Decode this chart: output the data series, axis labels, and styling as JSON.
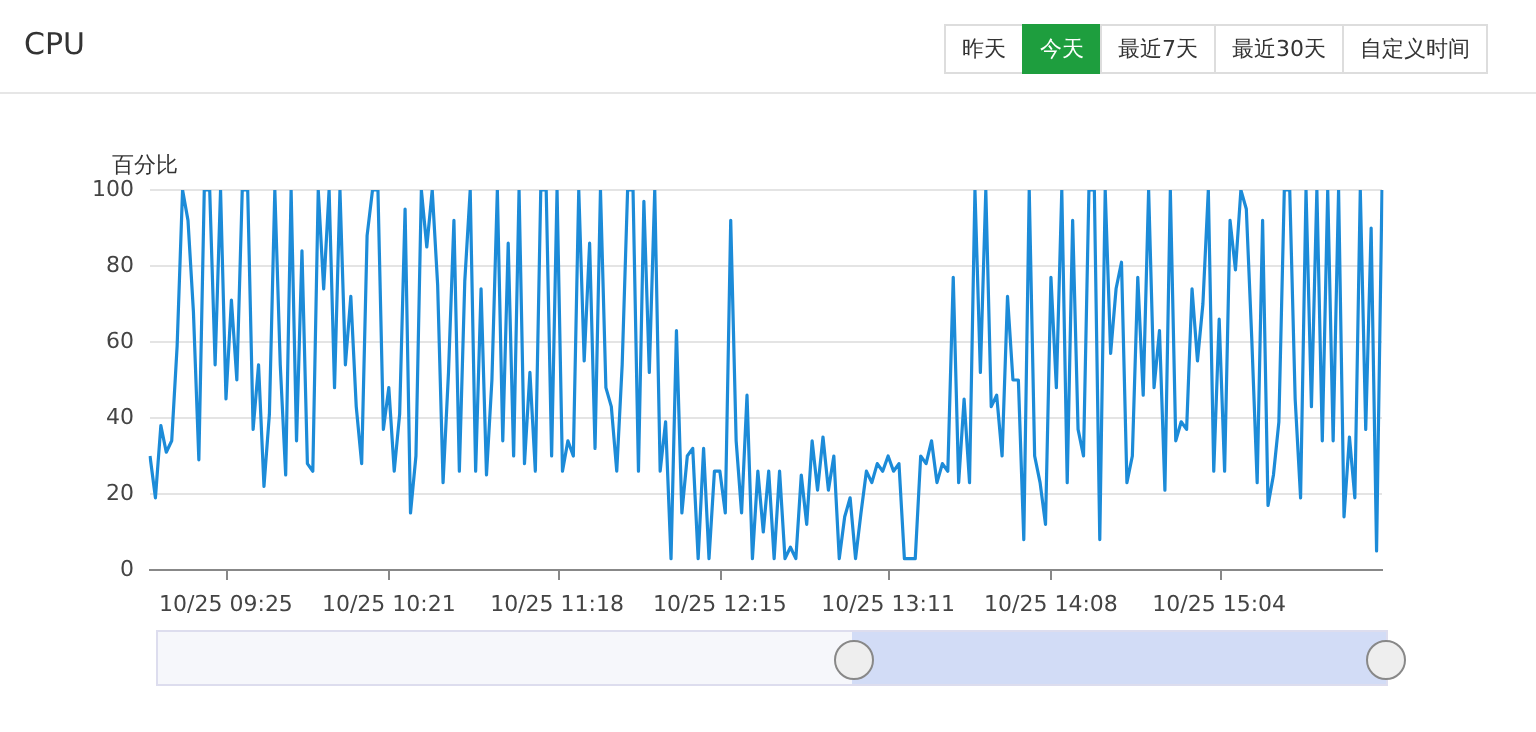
{
  "chart_data": {
    "type": "line",
    "title": "CPU",
    "ylabel": "百分比",
    "annotations": [
      "昨天",
      "今天",
      "最近7天",
      "最近30天",
      "自定义时间"
    ],
    "categories": [
      null,
      null,
      null,
      null,
      null,
      null,
      null,
      null,
      null,
      null,
      null,
      null,
      null,
      null,
      "10/25 09:25",
      null,
      null,
      null,
      null,
      null,
      null,
      null,
      null,
      null,
      null,
      null,
      null,
      null,
      null,
      null,
      null,
      null,
      null,
      null,
      null,
      null,
      null,
      null,
      null,
      null,
      null,
      null,
      null,
      null,
      "10/25 10:21",
      null,
      null,
      null,
      null,
      null,
      null,
      null,
      null,
      null,
      null,
      null,
      null,
      null,
      null,
      null,
      null,
      null,
      null,
      null,
      null,
      null,
      null,
      null,
      null,
      null,
      null,
      null,
      null,
      null,
      null,
      "10/25 11:18",
      null,
      null,
      null,
      null,
      null,
      null,
      null,
      null,
      null,
      null,
      null,
      null,
      null,
      null,
      null,
      null,
      null,
      null,
      null,
      null,
      null,
      null,
      null,
      null,
      null,
      null,
      null,
      null,
      null,
      "10/25 12:15",
      null,
      null,
      null,
      null,
      null,
      null,
      null,
      null,
      null,
      null,
      null,
      null,
      null,
      null,
      null,
      null,
      null,
      null,
      null,
      null,
      null,
      null,
      null,
      null,
      null,
      null,
      null,
      null,
      null,
      null,
      "10/25 13:11",
      null,
      null,
      null,
      null,
      null,
      null,
      null,
      null,
      null,
      null,
      null,
      null,
      null,
      null,
      null,
      null,
      null,
      null,
      null,
      null,
      null,
      null,
      null,
      null,
      null,
      null,
      null,
      null,
      null,
      "10/25 14:08",
      null,
      null,
      null,
      null,
      null,
      null,
      null,
      null,
      null,
      null,
      null,
      null,
      null,
      null,
      null,
      null,
      null,
      null,
      null,
      null,
      null,
      null,
      null,
      null,
      null,
      null,
      null,
      null,
      null,
      null,
      "10/25 15:04",
      null,
      null,
      null,
      null,
      null,
      null,
      null,
      null,
      null,
      null,
      null,
      null,
      null,
      null,
      null,
      null,
      null,
      null,
      null,
      null,
      null,
      null,
      null,
      null,
      null,
      null,
      null,
      null,
      null,
      null
    ],
    "ylim": [
      0,
      100
    ],
    "yticks": [
      0,
      20,
      40,
      60,
      80,
      100
    ],
    "grid": "y",
    "marker": "none",
    "line_style": "solid",
    "legend": false,
    "series": [
      {
        "color": "#1c8bd8",
        "values": [
          30,
          19,
          38,
          31,
          34,
          59,
          100,
          92,
          68,
          29,
          100,
          100,
          54,
          100,
          45,
          71,
          50,
          100,
          100,
          37,
          54,
          22,
          41,
          100,
          54,
          25,
          100,
          34,
          84,
          28,
          26,
          100,
          74,
          100,
          48,
          100,
          54,
          72,
          43,
          28,
          88,
          100,
          100,
          37,
          48,
          26,
          41,
          95,
          15,
          30,
          100,
          85,
          100,
          75,
          23,
          52,
          92,
          26,
          76,
          100,
          26,
          74,
          25,
          50,
          100,
          34,
          86,
          30,
          100,
          28,
          52,
          26,
          100,
          100,
          30,
          100,
          26,
          34,
          30,
          100,
          55,
          86,
          32,
          100,
          48,
          43,
          26,
          54,
          100,
          100,
          26,
          97,
          52,
          100,
          26,
          39,
          3,
          63,
          15,
          30,
          32,
          3,
          32,
          3,
          26,
          26,
          15,
          92,
          34,
          15,
          46,
          3,
          26,
          10,
          26,
          3,
          26,
          3,
          6,
          3,
          25,
          12,
          34,
          21,
          35,
          21,
          30,
          3,
          14,
          19,
          3,
          15,
          26,
          23,
          28,
          26,
          30,
          26,
          28,
          3,
          3,
          3,
          30,
          28,
          34,
          23,
          28,
          26,
          77,
          23,
          45,
          23,
          100,
          52,
          100,
          43,
          46,
          30,
          72,
          50,
          50,
          8,
          100,
          30,
          23,
          12,
          77,
          48,
          100,
          23,
          92,
          37,
          30,
          100,
          100,
          8,
          100,
          57,
          74,
          81,
          23,
          30,
          77,
          46,
          100,
          48,
          63,
          21,
          100,
          34,
          39,
          37,
          74,
          55,
          70,
          100,
          26,
          66,
          26,
          92,
          79,
          100,
          95,
          61,
          23,
          92,
          17,
          25,
          39,
          100,
          100,
          45,
          19,
          100,
          43,
          100,
          34,
          100,
          34,
          100,
          14,
          35,
          19,
          100,
          37,
          90,
          5,
          100
        ]
      }
    ]
  }
}
